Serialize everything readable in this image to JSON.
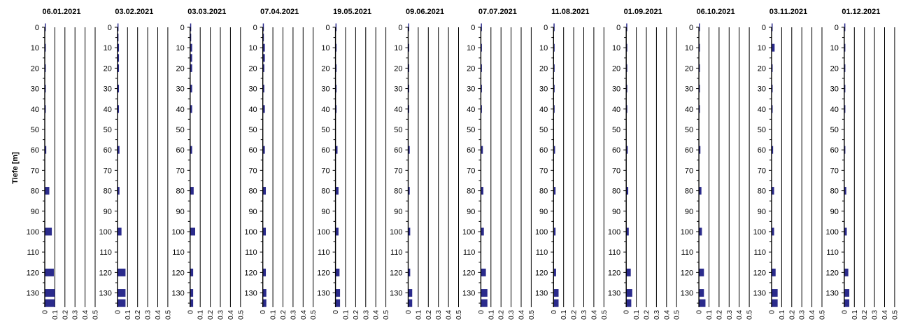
{
  "figure": {
    "ylabel": "Tiefe [m]",
    "bar_color": "#2b2b8c"
  },
  "chart_data": {
    "type": "bar",
    "orientation": "horizontal",
    "ylabel": "Tiefe [m]",
    "y_ticks": [
      0,
      10,
      20,
      30,
      40,
      50,
      60,
      70,
      80,
      90,
      100,
      110,
      120,
      130
    ],
    "y_range": [
      0,
      137
    ],
    "x_ticks": [
      0,
      0.1,
      0.2,
      0.3,
      0.4,
      0.5
    ],
    "x_range": [
      0,
      0.5
    ],
    "grid": "vertical",
    "panels": [
      {
        "title": "06.01.2021",
        "points": [
          {
            "depth": 0,
            "value": 0.005
          },
          {
            "depth": 10,
            "value": 0.005
          },
          {
            "depth": 20,
            "value": 0.005
          },
          {
            "depth": 30,
            "value": 0.01
          },
          {
            "depth": 40,
            "value": 0.01
          },
          {
            "depth": 60,
            "value": 0.015
          },
          {
            "depth": 80,
            "value": 0.045
          },
          {
            "depth": 100,
            "value": 0.07
          },
          {
            "depth": 120,
            "value": 0.09
          },
          {
            "depth": 130,
            "value": 0.1
          },
          {
            "depth": 135,
            "value": 0.1
          }
        ]
      },
      {
        "title": "03.02.2021",
        "points": [
          {
            "depth": 0,
            "value": 0.01
          },
          {
            "depth": 5,
            "value": 0.01
          },
          {
            "depth": 10,
            "value": 0.015
          },
          {
            "depth": 15,
            "value": 0.015
          },
          {
            "depth": 20,
            "value": 0.015
          },
          {
            "depth": 30,
            "value": 0.015
          },
          {
            "depth": 40,
            "value": 0.015
          },
          {
            "depth": 60,
            "value": 0.02
          },
          {
            "depth": 80,
            "value": 0.02
          },
          {
            "depth": 100,
            "value": 0.04
          },
          {
            "depth": 120,
            "value": 0.08
          },
          {
            "depth": 130,
            "value": 0.08
          },
          {
            "depth": 135,
            "value": 0.08
          }
        ]
      },
      {
        "title": "03.03.2021",
        "points": [
          {
            "depth": 0,
            "value": 0.01
          },
          {
            "depth": 5,
            "value": 0.01
          },
          {
            "depth": 10,
            "value": 0.02
          },
          {
            "depth": 15,
            "value": 0.02
          },
          {
            "depth": 20,
            "value": 0.02
          },
          {
            "depth": 30,
            "value": 0.02
          },
          {
            "depth": 40,
            "value": 0.02
          },
          {
            "depth": 60,
            "value": 0.02
          },
          {
            "depth": 80,
            "value": 0.035
          },
          {
            "depth": 100,
            "value": 0.05
          },
          {
            "depth": 120,
            "value": 0.03
          },
          {
            "depth": 130,
            "value": 0.03
          },
          {
            "depth": 135,
            "value": 0.03
          }
        ]
      },
      {
        "title": "07.04.2021",
        "points": [
          {
            "depth": 0,
            "value": 0.01
          },
          {
            "depth": 5,
            "value": 0.01
          },
          {
            "depth": 10,
            "value": 0.02
          },
          {
            "depth": 15,
            "value": 0.02
          },
          {
            "depth": 20,
            "value": 0.015
          },
          {
            "depth": 30,
            "value": 0.015
          },
          {
            "depth": 40,
            "value": 0.02
          },
          {
            "depth": 60,
            "value": 0.02
          },
          {
            "depth": 80,
            "value": 0.03
          },
          {
            "depth": 100,
            "value": 0.03
          },
          {
            "depth": 120,
            "value": 0.03
          },
          {
            "depth": 130,
            "value": 0.035
          },
          {
            "depth": 135,
            "value": 0.035
          }
        ]
      },
      {
        "title": "19.05.2021",
        "points": [
          {
            "depth": 0,
            "value": 0.01
          },
          {
            "depth": 10,
            "value": 0.01
          },
          {
            "depth": 20,
            "value": 0.01
          },
          {
            "depth": 30,
            "value": 0.01
          },
          {
            "depth": 40,
            "value": 0.01
          },
          {
            "depth": 60,
            "value": 0.02
          },
          {
            "depth": 80,
            "value": 0.03
          },
          {
            "depth": 100,
            "value": 0.03
          },
          {
            "depth": 120,
            "value": 0.04
          },
          {
            "depth": 130,
            "value": 0.045
          },
          {
            "depth": 135,
            "value": 0.045
          }
        ]
      },
      {
        "title": "09.06.2021",
        "points": [
          {
            "depth": 0,
            "value": 0.005
          },
          {
            "depth": 10,
            "value": 0.005
          },
          {
            "depth": 20,
            "value": 0.005
          },
          {
            "depth": 30,
            "value": 0.01
          },
          {
            "depth": 40,
            "value": 0.01
          },
          {
            "depth": 60,
            "value": 0.015
          },
          {
            "depth": 80,
            "value": 0.015
          },
          {
            "depth": 100,
            "value": 0.02
          },
          {
            "depth": 120,
            "value": 0.02
          },
          {
            "depth": 130,
            "value": 0.04
          },
          {
            "depth": 135,
            "value": 0.04
          }
        ]
      },
      {
        "title": "07.07.2021",
        "points": [
          {
            "depth": 0,
            "value": 0.005
          },
          {
            "depth": 10,
            "value": 0.005
          },
          {
            "depth": 20,
            "value": 0.005
          },
          {
            "depth": 30,
            "value": 0.005
          },
          {
            "depth": 40,
            "value": 0.005
          },
          {
            "depth": 60,
            "value": 0.02
          },
          {
            "depth": 80,
            "value": 0.025
          },
          {
            "depth": 100,
            "value": 0.03
          },
          {
            "depth": 120,
            "value": 0.05
          },
          {
            "depth": 130,
            "value": 0.065
          },
          {
            "depth": 135,
            "value": 0.065
          }
        ]
      },
      {
        "title": "11.08.2021",
        "points": [
          {
            "depth": 0,
            "value": 0.005
          },
          {
            "depth": 10,
            "value": 0.005
          },
          {
            "depth": 20,
            "value": 0.005
          },
          {
            "depth": 30,
            "value": 0.005
          },
          {
            "depth": 40,
            "value": 0.005
          },
          {
            "depth": 60,
            "value": 0.015
          },
          {
            "depth": 80,
            "value": 0.02
          },
          {
            "depth": 100,
            "value": 0.02
          },
          {
            "depth": 120,
            "value": 0.025
          },
          {
            "depth": 130,
            "value": 0.05
          },
          {
            "depth": 135,
            "value": 0.05
          }
        ]
      },
      {
        "title": "01.09.2021",
        "points": [
          {
            "depth": 0,
            "value": 0.005
          },
          {
            "depth": 10,
            "value": 0.01
          },
          {
            "depth": 20,
            "value": 0.01
          },
          {
            "depth": 30,
            "value": 0.01
          },
          {
            "depth": 40,
            "value": 0.01
          },
          {
            "depth": 60,
            "value": 0.015
          },
          {
            "depth": 80,
            "value": 0.02
          },
          {
            "depth": 100,
            "value": 0.025
          },
          {
            "depth": 120,
            "value": 0.045
          },
          {
            "depth": 130,
            "value": 0.06
          },
          {
            "depth": 135,
            "value": 0.05
          }
        ]
      },
      {
        "title": "06.10.2021",
        "points": [
          {
            "depth": 0,
            "value": 0.005
          },
          {
            "depth": 10,
            "value": 0.005
          },
          {
            "depth": 20,
            "value": 0.005
          },
          {
            "depth": 30,
            "value": 0.005
          },
          {
            "depth": 40,
            "value": 0.005
          },
          {
            "depth": 60,
            "value": 0.015
          },
          {
            "depth": 80,
            "value": 0.025
          },
          {
            "depth": 100,
            "value": 0.03
          },
          {
            "depth": 120,
            "value": 0.05
          },
          {
            "depth": 130,
            "value": 0.05
          },
          {
            "depth": 135,
            "value": 0.065
          }
        ]
      },
      {
        "title": "03.11.2021",
        "points": [
          {
            "depth": 0,
            "value": 0.005
          },
          {
            "depth": 10,
            "value": 0.03
          },
          {
            "depth": 20,
            "value": 0.01
          },
          {
            "depth": 30,
            "value": 0.01
          },
          {
            "depth": 40,
            "value": 0.01
          },
          {
            "depth": 60,
            "value": 0.015
          },
          {
            "depth": 80,
            "value": 0.025
          },
          {
            "depth": 100,
            "value": 0.025
          },
          {
            "depth": 120,
            "value": 0.04
          },
          {
            "depth": 130,
            "value": 0.06
          },
          {
            "depth": 135,
            "value": 0.06
          }
        ]
      },
      {
        "title": "01.12.2021",
        "points": [
          {
            "depth": 0,
            "value": 0.005
          },
          {
            "depth": 10,
            "value": 0.01
          },
          {
            "depth": 20,
            "value": 0.01
          },
          {
            "depth": 30,
            "value": 0.01
          },
          {
            "depth": 40,
            "value": 0.01
          },
          {
            "depth": 60,
            "value": 0.01
          },
          {
            "depth": 80,
            "value": 0.02
          },
          {
            "depth": 100,
            "value": 0.025
          },
          {
            "depth": 120,
            "value": 0.04
          },
          {
            "depth": 130,
            "value": 0.05
          },
          {
            "depth": 135,
            "value": 0.05
          }
        ]
      }
    ]
  }
}
